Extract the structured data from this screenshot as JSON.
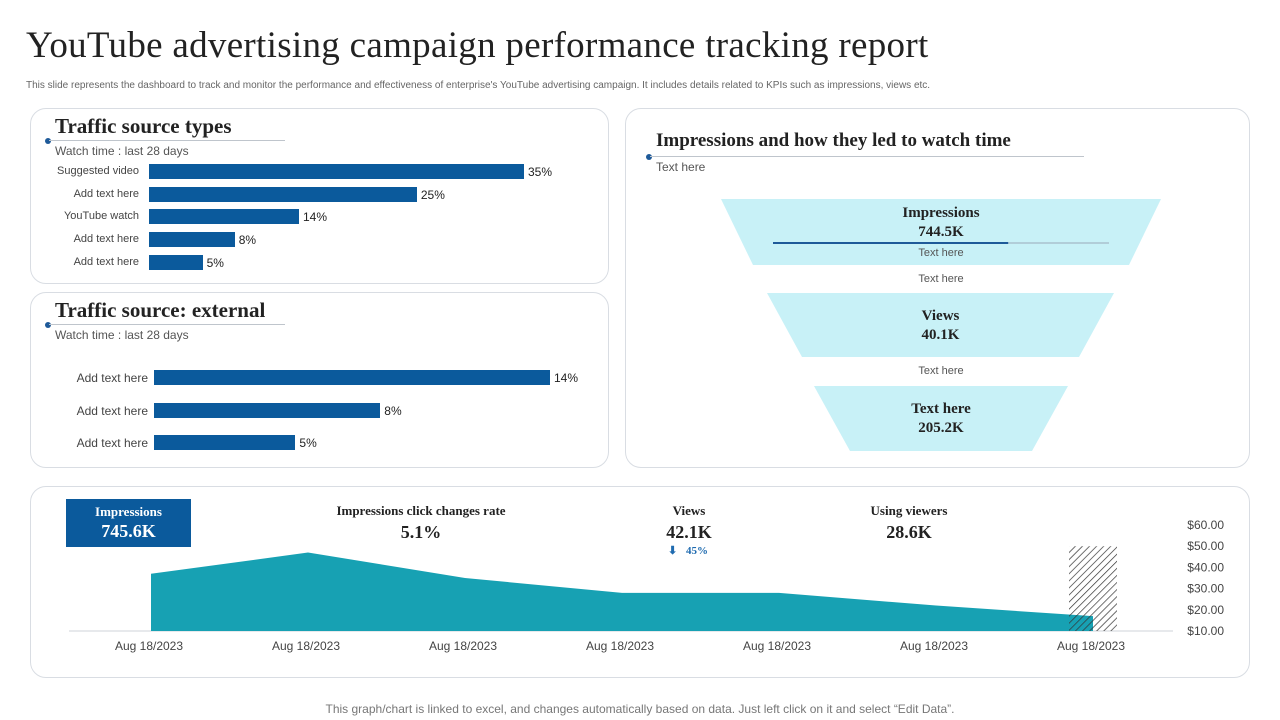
{
  "page": {
    "title": "YouTube advertising campaign performance tracking report",
    "subtitle": "This slide represents the dashboard to track and monitor the performance and effectiveness of enterprise's YouTube advertising campaign. It includes details related to KPIs such as impressions, views etc.",
    "footer": "This graph/chart is linked to excel,  and changes automatically based on data. Just left click on it and select “Edit Data”."
  },
  "traffic_types": {
    "title": "Traffic source types",
    "subtitle": "Watch time : last 28 days"
  },
  "traffic_external": {
    "title": "Traffic source: external",
    "subtitle": "Watch time : last 28 days"
  },
  "impressions_panel": {
    "title": "Impressions and how they led  to watch time",
    "subtitle": "Text here",
    "funnel": [
      {
        "name": "Impressions",
        "value": "744.5K",
        "note": "Text here",
        "progress": 0.7
      },
      {
        "name": "Views",
        "value": "40.1K"
      },
      {
        "name": "Text here",
        "value": "205.2K"
      }
    ],
    "between_notes": [
      "Text here",
      "Text here"
    ]
  },
  "kpis": {
    "impressions": {
      "label": "Impressions",
      "value": "745.6K"
    },
    "click_rate": {
      "label": "Impressions click changes rate",
      "value": "5.1%"
    },
    "views": {
      "label": "Views",
      "value": "42.1K",
      "change": "45%",
      "change_icon": "down-arrow-icon"
    },
    "using_viewers": {
      "label": "Using viewers",
      "value": "28.6K"
    }
  },
  "colors": {
    "bar": "#0b5a9c",
    "area": "#17a1b3",
    "funnel": "#c8f1f7",
    "accent": "#1e5a99"
  },
  "chart_data": [
    {
      "type": "bar",
      "orientation": "horizontal",
      "title": "Traffic source types",
      "categories": [
        "Suggested video",
        "Add text here",
        "YouTube watch",
        "Add text here",
        "Add text here"
      ],
      "values": [
        35,
        25,
        14,
        8,
        5
      ],
      "value_labels": [
        "35%",
        "25%",
        "14%",
        "8%",
        "5%"
      ],
      "xlim": [
        0,
        35
      ]
    },
    {
      "type": "bar",
      "orientation": "horizontal",
      "title": "Traffic source: external",
      "categories": [
        "Add text here",
        "Add text here",
        "Add text here"
      ],
      "values": [
        14,
        8,
        5
      ],
      "value_labels": [
        "14%",
        "8%",
        "5%"
      ],
      "xlim": [
        0,
        14
      ]
    },
    {
      "type": "area",
      "title": "",
      "x": [
        "Aug 18/2023",
        "Aug 18/2023",
        "Aug 18/2023",
        "Aug 18/2023",
        "Aug 18/2023",
        "Aug 18/2023",
        "Aug 18/2023"
      ],
      "values": [
        37,
        47,
        35,
        28,
        28,
        22,
        17
      ],
      "ylim": [
        10,
        60
      ],
      "yticks": [
        "$60.00",
        "$50.00",
        "$40.00",
        "$30.00",
        "$20.00",
        "$10.00"
      ],
      "hatched_bar_value": 50,
      "legend": "none"
    }
  ]
}
